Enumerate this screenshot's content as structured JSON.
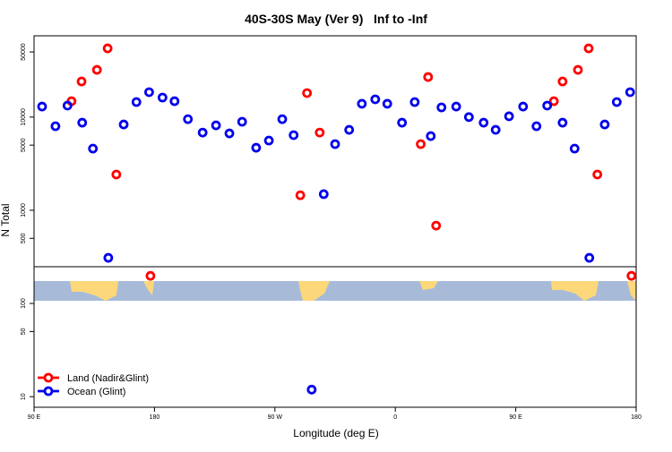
{
  "chart_data": {
    "type": "scatter",
    "title": "40S-30S May (Ver 9)   Inf to -Inf",
    "x_label": "Longitude (deg E)",
    "y_label": "N Total",
    "log_y": true,
    "xlim": [
      90,
      540
    ],
    "xticks": [
      {
        "value": 90,
        "label": "90 E"
      },
      180,
      {
        "value": 270,
        "label": "90 W"
      },
      {
        "value": 360,
        "label": "0"
      },
      {
        "value": 450,
        "label": "90 E"
      },
      {
        "value": 540,
        "label": "180"
      }
    ],
    "ylim": [
      7.7,
      74500
    ],
    "yticks": [
      10,
      50,
      100,
      500,
      1000,
      5000,
      10000,
      50000
    ],
    "legend": "bottom-left",
    "series": [
      {
        "name": "Land (Nadir&Glint)",
        "color": "#ff0000",
        "x": [
          118,
          125.5,
          137,
          145,
          151.5,
          177,
          289,
          294,
          303.5,
          379,
          384.5,
          390.5,
          478.5,
          485,
          496.5,
          504.5,
          511,
          536.5
        ],
        "values": [
          14800,
          24100,
          32100,
          54600,
          2420,
          198,
          1450,
          18100,
          6820,
          5130,
          26900,
          684,
          14800,
          24100,
          32100,
          54600,
          2420,
          198
        ]
      },
      {
        "name": "Ocean (Glint)",
        "color": "#0000ee",
        "x": [
          96,
          106,
          115,
          126,
          134,
          145.5,
          157,
          166.5,
          176,
          186,
          195,
          205,
          216,
          226,
          236,
          245.5,
          256,
          265.5,
          275.5,
          284,
          297.5,
          306.5,
          315,
          325.5,
          335,
          345,
          354,
          365,
          374.5,
          386.5,
          394.5,
          405.5,
          415,
          426,
          435,
          445,
          455.5,
          465.5,
          473.5,
          485,
          494,
          505,
          516.5,
          525.5,
          535.5
        ],
        "values": [
          12970,
          7980,
          13280,
          8710,
          4590,
          309,
          8330,
          14500,
          18500,
          16200,
          14800,
          9500,
          6820,
          8150,
          6680,
          8910,
          4690,
          5600,
          9500,
          6400,
          11.9,
          1490,
          5130,
          7300,
          13900,
          15500,
          13900,
          8710,
          14500,
          6250,
          12700,
          12970,
          10000,
          8710,
          7300,
          10200,
          12970,
          7980,
          13280,
          8710,
          4590,
          309,
          8330,
          14500,
          18500
        ]
      }
    ]
  }
}
